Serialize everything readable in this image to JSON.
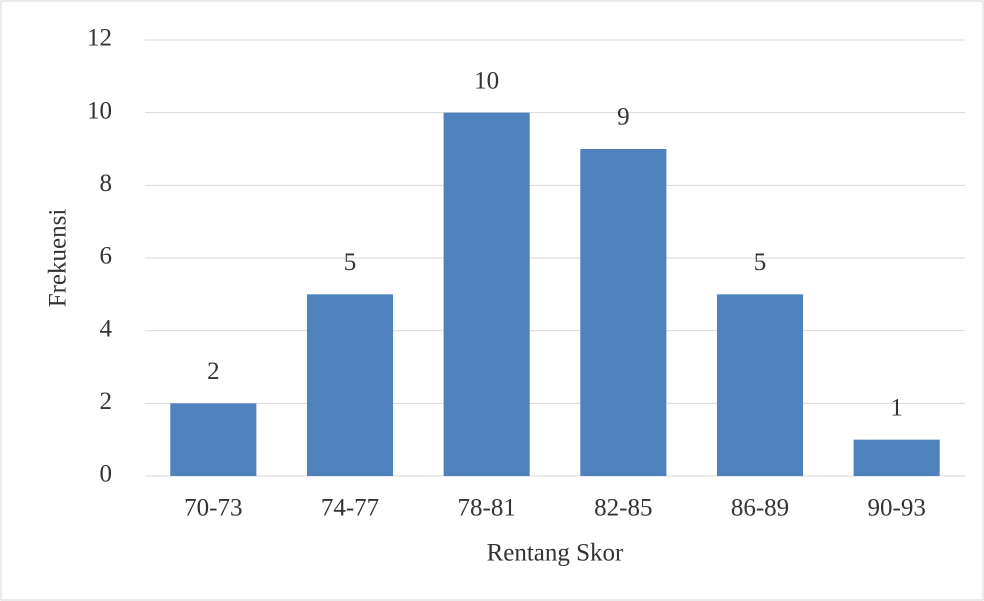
{
  "chart_data": {
    "type": "bar",
    "x_label": "Rentang Skor",
    "y_label": "Frekuensi",
    "categories": [
      "70-73",
      "74-77",
      "78-81",
      "82-85",
      "86-89",
      "90-93"
    ],
    "values": [
      2,
      5,
      10,
      9,
      5,
      1
    ],
    "color": "#4f81bd",
    "ylim": [
      0,
      12
    ],
    "yticks": [
      0,
      2,
      4,
      6,
      8,
      10,
      12
    ],
    "grid": true
  }
}
